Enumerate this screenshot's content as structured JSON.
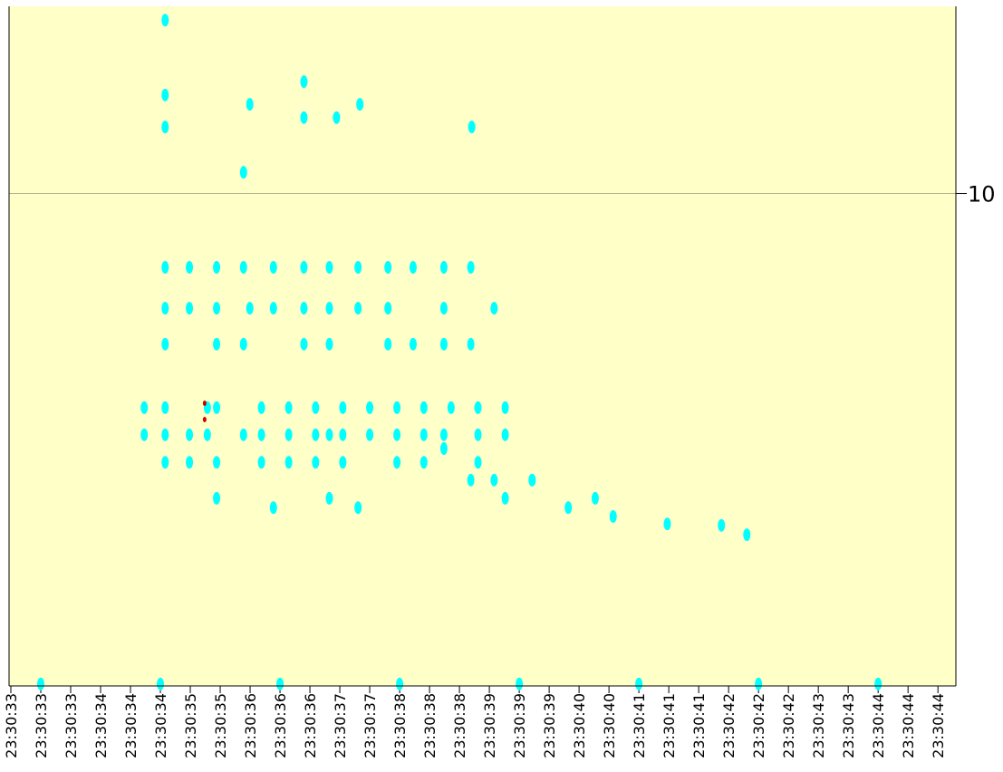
{
  "chart_data": {
    "type": "scatter",
    "xlim": [
      -0.06,
      31.6
    ],
    "ylim": [
      0,
      13.8
    ],
    "xticks": [
      {
        "value": 0,
        "label": "23:30:33"
      },
      {
        "value": 1,
        "label": "23:30:33"
      },
      {
        "value": 2,
        "label": "23:30:33"
      },
      {
        "value": 3,
        "label": "23:30:34"
      },
      {
        "value": 4,
        "label": "23:30:34"
      },
      {
        "value": 5,
        "label": "23:30:34"
      },
      {
        "value": 6,
        "label": "23:30:35"
      },
      {
        "value": 7,
        "label": "23:30:35"
      },
      {
        "value": 8,
        "label": "23:30:36"
      },
      {
        "value": 9,
        "label": "23:30:36"
      },
      {
        "value": 10,
        "label": "23:30:36"
      },
      {
        "value": 11,
        "label": "23:30:37"
      },
      {
        "value": 12,
        "label": "23:30:37"
      },
      {
        "value": 13,
        "label": "23:30:38"
      },
      {
        "value": 14,
        "label": "23:30:38"
      },
      {
        "value": 15,
        "label": "23:30:38"
      },
      {
        "value": 16,
        "label": "23:30:39"
      },
      {
        "value": 17,
        "label": "23:30:39"
      },
      {
        "value": 18,
        "label": "23:30:39"
      },
      {
        "value": 19,
        "label": "23:30:40"
      },
      {
        "value": 20,
        "label": "23:30:40"
      },
      {
        "value": 21,
        "label": "23:30:41"
      },
      {
        "value": 22,
        "label": "23:30:41"
      },
      {
        "value": 23,
        "label": "23:30:41"
      },
      {
        "value": 24,
        "label": "23:30:42"
      },
      {
        "value": 25,
        "label": "23:30:42"
      },
      {
        "value": 26,
        "label": "23:30:42"
      },
      {
        "value": 27,
        "label": "23:30:43"
      },
      {
        "value": 28,
        "label": "23:30:43"
      },
      {
        "value": 29,
        "label": "23:30:44"
      },
      {
        "value": 30,
        "label": "23:30:44"
      },
      {
        "value": 31,
        "label": "23:30:44"
      }
    ],
    "yticks": [
      10
    ],
    "grid": true,
    "background": "#ffffc8",
    "series": [
      {
        "color": "#00ffff",
        "x": [
          5.16,
          5.16,
          5.16,
          7.99,
          9.8,
          9.8,
          11.67,
          10.89,
          7.78,
          15.41,
          5.16,
          5.97,
          6.88,
          7.78,
          8.78,
          9.8,
          10.65,
          11.61,
          12.61,
          13.45,
          14.48,
          15.38,
          5.16,
          5.97,
          6.88,
          7.99,
          8.78,
          9.8,
          10.65,
          11.61,
          12.61,
          14.48,
          16.16,
          5.16,
          6.88,
          7.78,
          9.8,
          10.65,
          12.61,
          13.45,
          14.48,
          15.38,
          4.46,
          5.16,
          6.57,
          6.88,
          8.38,
          9.29,
          10.19,
          11.1,
          12.0,
          12.91,
          13.81,
          14.72,
          15.62,
          16.53,
          4.46,
          5.16,
          5.97,
          6.57,
          7.78,
          8.38,
          9.29,
          10.19,
          10.65,
          11.1,
          12.0,
          12.91,
          13.81,
          14.48,
          15.62,
          16.53,
          5.16,
          5.97,
          6.88,
          8.38,
          9.29,
          10.19,
          11.1,
          12.91,
          14.48,
          15.62,
          16.16,
          17.43,
          6.88,
          8.78,
          10.65,
          11.61,
          13.81,
          15.38,
          16.53,
          17.43,
          18.64,
          19.54,
          20.14,
          21.95,
          23.76,
          24.61,
          1,
          5,
          9,
          13,
          17,
          21,
          25,
          29
        ],
        "values": [
          13.52,
          12.0,
          11.35,
          11.81,
          12.27,
          11.54,
          11.81,
          11.54,
          10.43,
          11.35,
          8.5,
          8.5,
          8.5,
          8.5,
          8.5,
          8.5,
          8.5,
          8.5,
          8.5,
          8.5,
          8.5,
          8.5,
          7.67,
          7.67,
          7.67,
          7.67,
          7.67,
          7.67,
          7.67,
          7.67,
          7.67,
          7.67,
          7.67,
          6.94,
          6.94,
          6.94,
          6.94,
          6.94,
          6.94,
          6.94,
          6.94,
          6.94,
          5.65,
          5.65,
          5.65,
          5.65,
          5.65,
          5.65,
          5.65,
          5.65,
          5.65,
          5.65,
          5.65,
          5.65,
          5.65,
          5.65,
          5.1,
          5.1,
          5.1,
          5.1,
          5.1,
          5.1,
          5.1,
          5.1,
          5.1,
          5.1,
          5.1,
          5.1,
          5.1,
          5.1,
          5.1,
          5.1,
          4.54,
          4.54,
          4.54,
          4.54,
          4.54,
          4.54,
          4.54,
          4.54,
          4.82,
          4.54,
          4.18,
          4.18,
          3.81,
          3.62,
          3.81,
          3.62,
          4.54,
          4.18,
          3.81,
          4.18,
          3.62,
          3.81,
          3.44,
          3.29,
          3.26,
          3.07,
          0.04,
          0.04,
          0.04,
          0.04,
          0.04,
          0.04,
          0.04,
          0.04
        ]
      },
      {
        "color": "#cc0000",
        "x": [
          6.48,
          6.48
        ],
        "values": [
          5.74,
          5.41
        ]
      }
    ]
  }
}
